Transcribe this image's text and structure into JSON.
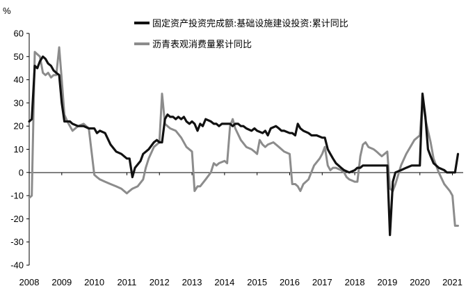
{
  "chart_data": {
    "type": "line",
    "ylabel": "%",
    "ylim": [
      -40,
      60
    ],
    "yticks": [
      "60",
      "50",
      "40",
      "30",
      "20",
      "10",
      "0",
      "-10",
      "-20",
      "-30",
      "-40"
    ],
    "xlim": [
      2008.0,
      2021.33
    ],
    "xticks": [
      "2008",
      "2009",
      "2010",
      "2011",
      "2012",
      "2013",
      "2014",
      "2015",
      "2016",
      "2017",
      "2018",
      "2019",
      "2020",
      "2021"
    ],
    "grid": false,
    "legend_position": "top-right",
    "series": [
      {
        "name": "固定资产投资完成额:基础设施建设投资:累计同比",
        "color": "#111111",
        "points": [
          [
            2008.0,
            22
          ],
          [
            2008.08,
            23
          ],
          [
            2008.17,
            46
          ],
          [
            2008.25,
            45
          ],
          [
            2008.33,
            48
          ],
          [
            2008.42,
            50
          ],
          [
            2008.5,
            49
          ],
          [
            2008.58,
            47
          ],
          [
            2008.67,
            46
          ],
          [
            2008.75,
            44
          ],
          [
            2008.83,
            43
          ],
          [
            2008.92,
            42
          ],
          [
            2009.0,
            30
          ],
          [
            2009.08,
            22
          ],
          [
            2009.17,
            22
          ],
          [
            2009.25,
            22
          ],
          [
            2009.33,
            21
          ],
          [
            2009.5,
            20
          ],
          [
            2009.67,
            20
          ],
          [
            2009.83,
            19
          ],
          [
            2010.0,
            19
          ],
          [
            2010.08,
            17
          ],
          [
            2010.17,
            18
          ],
          [
            2010.33,
            17
          ],
          [
            2010.5,
            12
          ],
          [
            2010.67,
            9
          ],
          [
            2010.83,
            8
          ],
          [
            2011.0,
            6
          ],
          [
            2011.08,
            6
          ],
          [
            2011.17,
            -2
          ],
          [
            2011.25,
            2
          ],
          [
            2011.42,
            5
          ],
          [
            2011.5,
            8
          ],
          [
            2011.67,
            10
          ],
          [
            2011.83,
            13
          ],
          [
            2011.92,
            14
          ],
          [
            2012.0,
            13
          ],
          [
            2012.08,
            13
          ],
          [
            2012.17,
            23
          ],
          [
            2012.25,
            25
          ],
          [
            2012.33,
            24
          ],
          [
            2012.42,
            24
          ],
          [
            2012.5,
            23
          ],
          [
            2012.58,
            24
          ],
          [
            2012.67,
            23
          ],
          [
            2012.75,
            24
          ],
          [
            2012.83,
            22
          ],
          [
            2012.92,
            21
          ],
          [
            2013.0,
            22
          ],
          [
            2013.08,
            21
          ],
          [
            2013.17,
            18
          ],
          [
            2013.25,
            21
          ],
          [
            2013.33,
            20
          ],
          [
            2013.42,
            23
          ],
          [
            2013.58,
            22
          ],
          [
            2013.67,
            21
          ],
          [
            2013.75,
            21
          ],
          [
            2013.83,
            20
          ],
          [
            2013.92,
            21
          ],
          [
            2014.0,
            21
          ],
          [
            2014.17,
            21
          ],
          [
            2014.25,
            20
          ],
          [
            2014.33,
            21
          ],
          [
            2014.42,
            21
          ],
          [
            2014.5,
            20
          ],
          [
            2014.58,
            20
          ],
          [
            2014.67,
            19
          ],
          [
            2014.83,
            18
          ],
          [
            2014.92,
            19
          ],
          [
            2015.0,
            18
          ],
          [
            2015.17,
            17
          ],
          [
            2015.25,
            18
          ],
          [
            2015.33,
            16
          ],
          [
            2015.42,
            19
          ],
          [
            2015.58,
            20
          ],
          [
            2015.67,
            19
          ],
          [
            2015.75,
            18
          ],
          [
            2015.83,
            18
          ],
          [
            2016.0,
            17
          ],
          [
            2016.08,
            17
          ],
          [
            2016.17,
            16
          ],
          [
            2016.25,
            21
          ],
          [
            2016.33,
            19
          ],
          [
            2016.42,
            18
          ],
          [
            2016.58,
            17
          ],
          [
            2016.67,
            16
          ],
          [
            2016.83,
            16
          ],
          [
            2017.0,
            15
          ],
          [
            2017.08,
            15
          ],
          [
            2017.17,
            10
          ],
          [
            2017.25,
            8
          ],
          [
            2017.33,
            6
          ],
          [
            2017.42,
            4
          ],
          [
            2017.58,
            2
          ],
          [
            2017.67,
            1
          ],
          [
            2017.83,
            0
          ],
          [
            2018.0,
            1
          ],
          [
            2018.08,
            2
          ],
          [
            2018.17,
            2
          ],
          [
            2018.25,
            3
          ],
          [
            2018.42,
            3
          ],
          [
            2018.58,
            3
          ],
          [
            2018.67,
            3
          ],
          [
            2018.75,
            3
          ],
          [
            2018.83,
            3
          ],
          [
            2019.0,
            3
          ],
          [
            2019.08,
            -27
          ],
          [
            2019.17,
            -4
          ],
          [
            2019.25,
            0
          ],
          [
            2019.42,
            1
          ],
          [
            2019.58,
            2
          ],
          [
            2019.75,
            3
          ],
          [
            2019.92,
            3
          ],
          [
            2020.0,
            3
          ],
          [
            2020.08,
            34
          ],
          [
            2020.17,
            24
          ],
          [
            2020.25,
            10
          ],
          [
            2020.33,
            7
          ],
          [
            2020.42,
            4
          ],
          [
            2020.58,
            2
          ],
          [
            2020.75,
            1
          ],
          [
            2020.83,
            0
          ],
          [
            2021.0,
            0
          ],
          [
            2021.08,
            0
          ],
          [
            2021.17,
            8
          ]
        ]
      },
      {
        "name": "沥青表观消费量累计同比",
        "color": "#8c8c8c",
        "points": [
          [
            2008.0,
            -11
          ],
          [
            2008.08,
            -10
          ],
          [
            2008.17,
            52
          ],
          [
            2008.25,
            51
          ],
          [
            2008.33,
            50
          ],
          [
            2008.42,
            43
          ],
          [
            2008.5,
            42
          ],
          [
            2008.58,
            43
          ],
          [
            2008.67,
            41
          ],
          [
            2008.75,
            42
          ],
          [
            2008.83,
            42
          ],
          [
            2008.92,
            54
          ],
          [
            2009.0,
            40
          ],
          [
            2009.08,
            25
          ],
          [
            2009.17,
            22
          ],
          [
            2009.25,
            20
          ],
          [
            2009.33,
            18
          ],
          [
            2009.5,
            20
          ],
          [
            2009.67,
            21
          ],
          [
            2009.75,
            20
          ],
          [
            2009.83,
            19
          ],
          [
            2010.0,
            -1
          ],
          [
            2010.08,
            -2
          ],
          [
            2010.17,
            -3
          ],
          [
            2010.33,
            -4
          ],
          [
            2010.5,
            -5
          ],
          [
            2010.67,
            -6
          ],
          [
            2010.83,
            -7
          ],
          [
            2011.0,
            -9
          ],
          [
            2011.08,
            -8
          ],
          [
            2011.17,
            -7
          ],
          [
            2011.33,
            -6
          ],
          [
            2011.5,
            -3
          ],
          [
            2011.58,
            2
          ],
          [
            2011.67,
            6
          ],
          [
            2011.83,
            11
          ],
          [
            2012.0,
            13
          ],
          [
            2012.08,
            34
          ],
          [
            2012.17,
            21
          ],
          [
            2012.25,
            20
          ],
          [
            2012.33,
            19
          ],
          [
            2012.5,
            18
          ],
          [
            2012.67,
            15
          ],
          [
            2012.83,
            11
          ],
          [
            2013.0,
            9
          ],
          [
            2013.08,
            -8
          ],
          [
            2013.17,
            -6
          ],
          [
            2013.25,
            -6
          ],
          [
            2013.42,
            -3
          ],
          [
            2013.58,
            0
          ],
          [
            2013.67,
            4
          ],
          [
            2013.75,
            3
          ],
          [
            2013.83,
            4
          ],
          [
            2014.0,
            5
          ],
          [
            2014.08,
            4
          ],
          [
            2014.17,
            20
          ],
          [
            2014.25,
            23
          ],
          [
            2014.33,
            19
          ],
          [
            2014.5,
            14
          ],
          [
            2014.67,
            11
          ],
          [
            2014.83,
            10
          ],
          [
            2014.92,
            9
          ],
          [
            2015.0,
            8
          ],
          [
            2015.08,
            14
          ],
          [
            2015.17,
            12
          ],
          [
            2015.25,
            11
          ],
          [
            2015.33,
            12
          ],
          [
            2015.5,
            13
          ],
          [
            2015.67,
            11
          ],
          [
            2015.83,
            9
          ],
          [
            2016.0,
            8
          ],
          [
            2016.08,
            -5
          ],
          [
            2016.17,
            -5
          ],
          [
            2016.25,
            -6
          ],
          [
            2016.33,
            -8
          ],
          [
            2016.42,
            -5
          ],
          [
            2016.58,
            -3
          ],
          [
            2016.75,
            3
          ],
          [
            2016.92,
            6
          ],
          [
            2017.0,
            8
          ],
          [
            2017.08,
            11
          ],
          [
            2017.17,
            3
          ],
          [
            2017.25,
            1
          ],
          [
            2017.33,
            2
          ],
          [
            2017.42,
            2
          ],
          [
            2017.58,
            1
          ],
          [
            2017.67,
            0
          ],
          [
            2017.75,
            -2
          ],
          [
            2017.83,
            -3
          ],
          [
            2018.0,
            -4
          ],
          [
            2018.08,
            -4
          ],
          [
            2018.17,
            7
          ],
          [
            2018.25,
            12
          ],
          [
            2018.33,
            13
          ],
          [
            2018.42,
            11
          ],
          [
            2018.58,
            10
          ],
          [
            2018.67,
            9
          ],
          [
            2018.75,
            8
          ],
          [
            2018.83,
            7
          ],
          [
            2019.0,
            9
          ],
          [
            2019.08,
            -7
          ],
          [
            2019.17,
            -8
          ],
          [
            2019.25,
            -5
          ],
          [
            2019.42,
            3
          ],
          [
            2019.58,
            8
          ],
          [
            2019.75,
            12
          ],
          [
            2019.83,
            14
          ],
          [
            2020.0,
            16
          ],
          [
            2020.08,
            31
          ],
          [
            2020.17,
            23
          ],
          [
            2020.25,
            18
          ],
          [
            2020.33,
            13
          ],
          [
            2020.42,
            6
          ],
          [
            2020.58,
            0
          ],
          [
            2020.75,
            -5
          ],
          [
            2020.92,
            -8
          ],
          [
            2021.0,
            -10
          ],
          [
            2021.08,
            -23
          ],
          [
            2021.17,
            -23
          ]
        ]
      }
    ]
  }
}
